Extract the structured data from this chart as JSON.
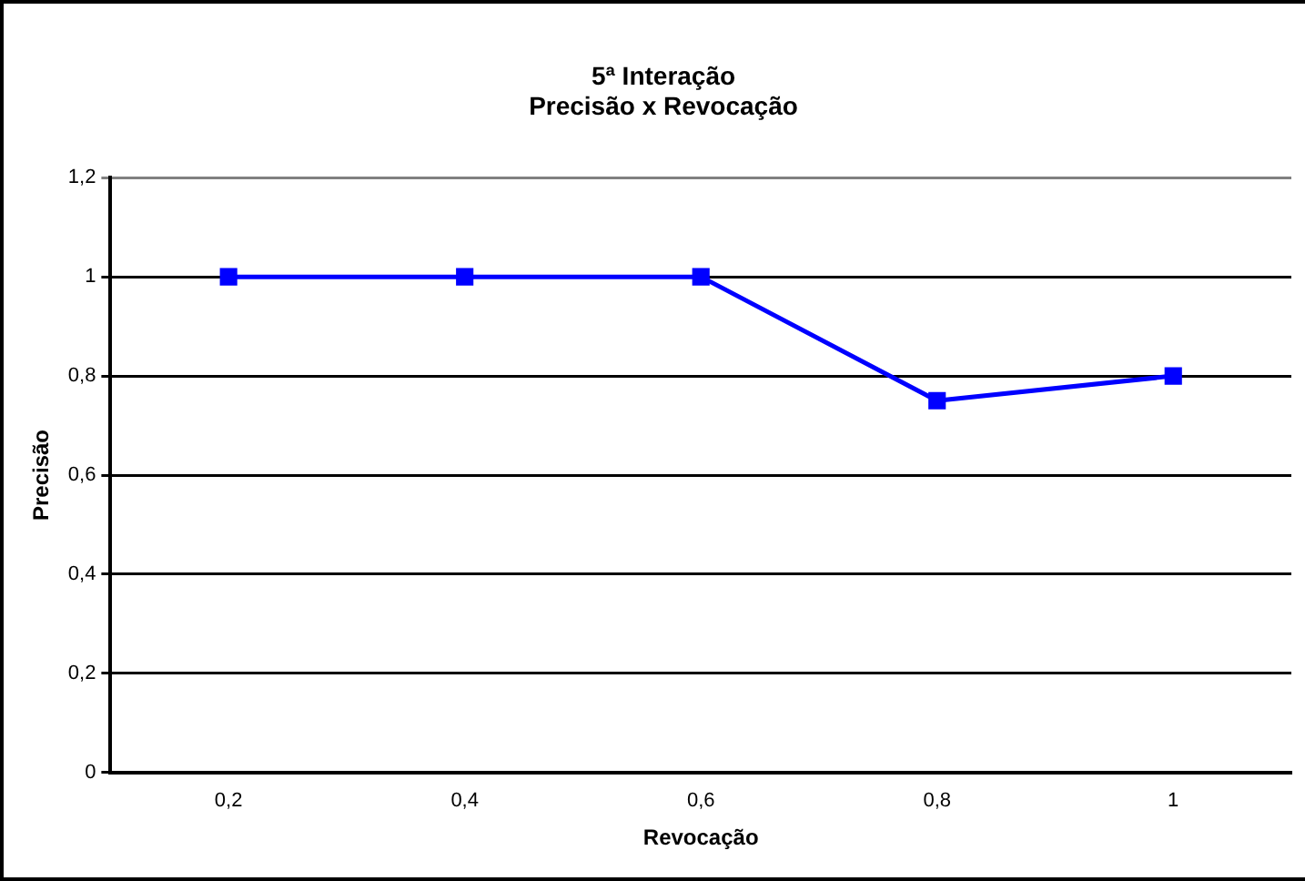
{
  "chart_data": {
    "type": "line",
    "title": [
      "5ª Interação",
      "Precisão x Revocação"
    ],
    "xlabel": "Revocação",
    "ylabel": "Precisão",
    "categories": [
      "0,2",
      "0,4",
      "0,6",
      "0,8",
      "1"
    ],
    "series": [
      {
        "color": "#0000ff",
        "values": [
          1,
          1,
          1,
          0.75,
          0.8
        ]
      }
    ],
    "ylim": [
      0,
      1.2
    ],
    "yticks": [
      0,
      {
        "value": 0.2,
        "label": "0,2"
      },
      {
        "value": 0.4,
        "label": "0,4"
      },
      {
        "value": 0.6,
        "label": "0,6"
      },
      {
        "value": 0.8,
        "label": "0,8"
      },
      1,
      {
        "value": 1.2,
        "label": "1,2"
      }
    ],
    "grid": "y",
    "legend": false,
    "marker": "square",
    "line_style": "solid"
  }
}
